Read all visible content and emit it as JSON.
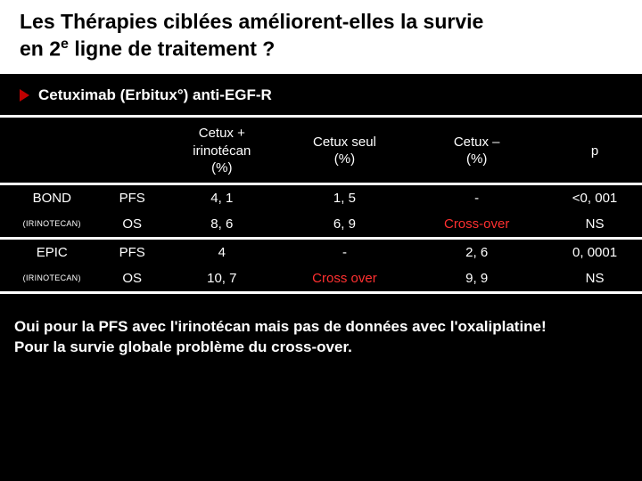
{
  "title_line1": "Les Thérapies ciblées améliorent-elles la survie",
  "title_line2_pre": "en 2",
  "title_line2_sup": "e",
  "title_line2_post": " ligne de traitement ?",
  "subheading": "Cetuximab (Erbitux°) anti-EGF-R",
  "headers": {
    "col_a_line1": "Cetux +",
    "col_a_line2": "irinotécan",
    "col_a_line3": "(%)",
    "col_b_line1": "Cetux seul",
    "col_b_line2": "(%)",
    "col_c_line1": "Cetux –",
    "col_c_line2": "(%)",
    "col_p": "p"
  },
  "studies": [
    {
      "name": "BOND",
      "note": "(IRINOTECAN)",
      "rows": [
        {
          "metric": "PFS",
          "a": "4, 1",
          "b": "1, 5",
          "c": "-",
          "c_accent": false,
          "p": "<0, 001"
        },
        {
          "metric": "OS",
          "a": "8, 6",
          "b": "6, 9",
          "c": "Cross-over",
          "c_accent": true,
          "p": "NS"
        }
      ]
    },
    {
      "name": "EPIC",
      "note": "(IRINOTECAN)",
      "rows": [
        {
          "metric": "PFS",
          "a": "4",
          "b": "-",
          "c": "2, 6",
          "c_accent": false,
          "p": "0, 0001"
        },
        {
          "metric": "OS",
          "a": "10, 7",
          "b": "Cross over",
          "b_accent": true,
          "c": "9, 9",
          "c_accent": false,
          "p": "NS"
        }
      ]
    }
  ],
  "footer_line1": "Oui  pour la PFS avec l'irinotécan mais pas de données avec l'oxaliplatine!",
  "footer_line2": "Pour la survie globale problème du cross-over.",
  "colors": {
    "background": "#000000",
    "title_bg": "#ffffff",
    "text": "#ffffff",
    "accent": "#ff3030",
    "arrow": "#c00000"
  }
}
